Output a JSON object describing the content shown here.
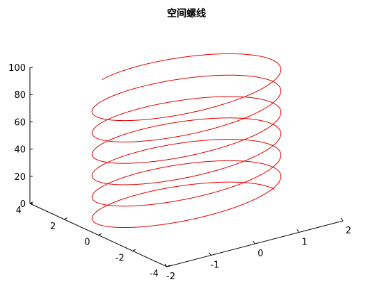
{
  "chart_data": {
    "type": "line3d",
    "title": "空间螺线",
    "series": [
      {
        "equation": "x = 2cos(t), y = 2sin(t), z = 2.5t",
        "color": "#e00000",
        "t_range": [
          0,
          40
        ]
      }
    ],
    "xlim": [
      -2,
      2
    ],
    "ylim": [
      -4,
      4
    ],
    "zlim": [
      0,
      100
    ],
    "x_ticks": [
      "-2",
      "-1",
      "0",
      "1",
      "2"
    ],
    "y_ticks": [
      "-4",
      "-2",
      "0",
      "2",
      "4"
    ],
    "z_ticks": [
      "0",
      "20",
      "40",
      "60",
      "80",
      "100"
    ],
    "grid": false,
    "legend": null
  }
}
